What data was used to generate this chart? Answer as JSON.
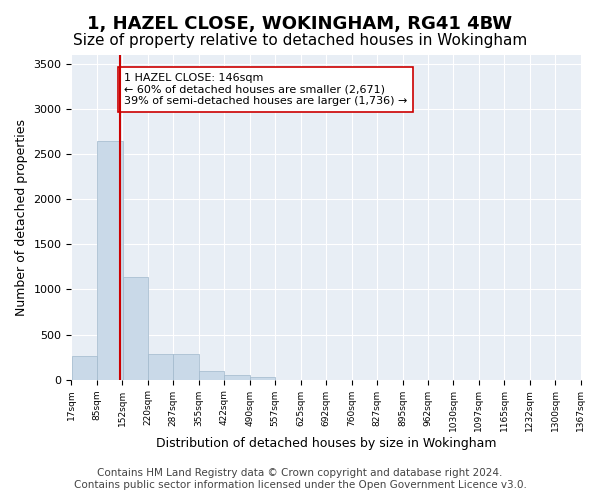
{
  "title": "1, HAZEL CLOSE, WOKINGHAM, RG41 4BW",
  "subtitle": "Size of property relative to detached houses in Wokingham",
  "xlabel": "Distribution of detached houses by size in Wokingham",
  "ylabel": "Number of detached properties",
  "bar_color": "#c9d9e8",
  "bar_edge_color": "#a0b8cc",
  "vline_color": "#cc0000",
  "vline_x": 146,
  "annotation_text": "1 HAZEL CLOSE: 146sqm\n← 60% of detached houses are smaller (2,671)\n39% of semi-detached houses are larger (1,736) →",
  "annotation_box_color": "#ffffff",
  "annotation_box_edge": "#cc0000",
  "bins": [
    17,
    85,
    152,
    220,
    287,
    355,
    422,
    490,
    557,
    625,
    692,
    760,
    827,
    895,
    962,
    1030,
    1097,
    1165,
    1232,
    1300,
    1367
  ],
  "bin_labels": [
    "17sqm",
    "85sqm",
    "152sqm",
    "220sqm",
    "287sqm",
    "355sqm",
    "422sqm",
    "490sqm",
    "557sqm",
    "625sqm",
    "692sqm",
    "760sqm",
    "827sqm",
    "895sqm",
    "962sqm",
    "1030sqm",
    "1097sqm",
    "1165sqm",
    "1232sqm",
    "1300sqm",
    "1367sqm"
  ],
  "bar_heights": [
    260,
    2650,
    1135,
    285,
    285,
    90,
    50,
    30,
    0,
    0,
    0,
    0,
    0,
    0,
    0,
    0,
    0,
    0,
    0,
    0
  ],
  "ylim": [
    0,
    3600
  ],
  "yticks": [
    0,
    500,
    1000,
    1500,
    2000,
    2500,
    3000,
    3500
  ],
  "footer_text": "Contains HM Land Registry data © Crown copyright and database right 2024.\nContains public sector information licensed under the Open Government Licence v3.0.",
  "background_color": "#e8eef5",
  "plot_bg_color": "#e8eef5",
  "title_fontsize": 13,
  "subtitle_fontsize": 11,
  "label_fontsize": 9,
  "footer_fontsize": 7.5
}
